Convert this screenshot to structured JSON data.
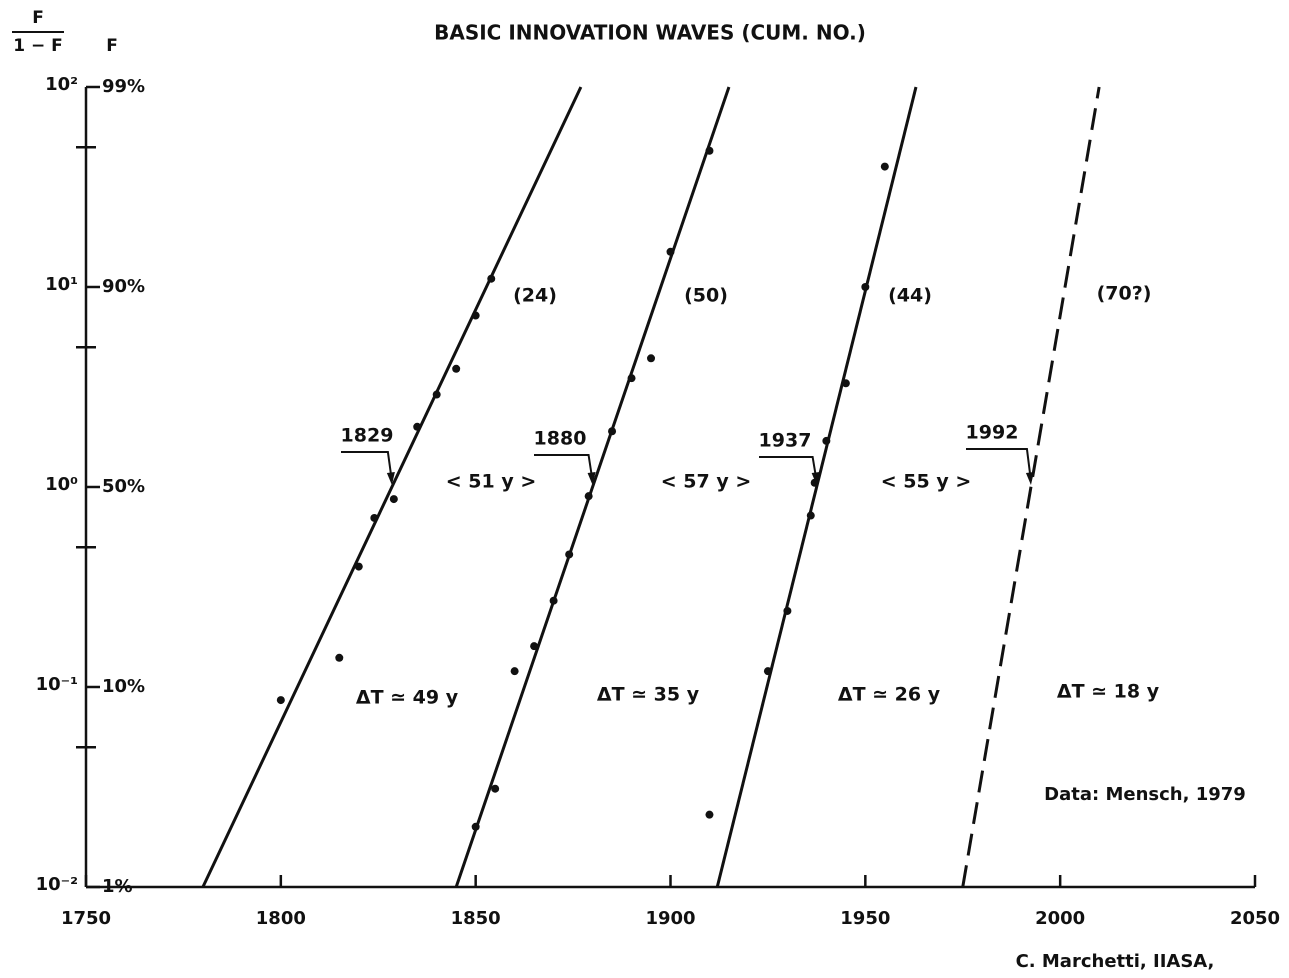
{
  "chart_data": {
    "type": "line",
    "title": "BASIC INNOVATION WAVES (CUM. NO.)",
    "y_label_numerator": "F",
    "y_label_denominator": "1 − F",
    "y_percent_axis_label": "F",
    "log_y": true,
    "xlim": [
      1750,
      2050
    ],
    "xticks": [
      1750,
      1800,
      1850,
      1900,
      1950,
      2000,
      2050
    ],
    "ylim": [
      0.01,
      100
    ],
    "yticks": [
      {
        "value": 100,
        "label": "10²"
      },
      {
        "value": 10,
        "label": "10¹"
      },
      {
        "value": 1,
        "label": "10⁰"
      },
      {
        "value": 0.1,
        "label": "10⁻¹"
      },
      {
        "value": 0.01,
        "label": "10⁻²"
      }
    ],
    "y_percent_labels": [
      "99%",
      "90%",
      "50%",
      "10%",
      "1%"
    ],
    "yminor_ticks": [
      50,
      5,
      0.5,
      0.05
    ],
    "series": [
      {
        "color": "#111111",
        "dashed": false,
        "count_label": "(24)",
        "midpoint_label": "1829",
        "delta_label": "ΔT ≃ 49 y",
        "x": [
          1780,
          1877
        ],
        "values": [
          0.01,
          100
        ],
        "points": {
          "x": [
            1800,
            1815,
            1820,
            1824,
            1829,
            1835,
            1840,
            1845,
            1850,
            1854
          ],
          "values": [
            0.086,
            0.14,
            0.4,
            0.7,
            0.87,
            2,
            2.9,
            3.9,
            7.2,
            11
          ]
        }
      },
      {
        "color": "#111111",
        "dashed": false,
        "count_label": "(50)",
        "midpoint_label": "1880",
        "delta_label": "ΔT ≃ 35 y",
        "x": [
          1845,
          1915
        ],
        "values": [
          0.01,
          100
        ],
        "points": {
          "x": [
            1850,
            1855,
            1860,
            1865,
            1870,
            1874,
            1879,
            1885,
            1890,
            1895,
            1900,
            1910
          ],
          "values": [
            0.02,
            0.031,
            0.12,
            0.16,
            0.27,
            0.46,
            0.9,
            1.9,
            3.5,
            4.4,
            15,
            48
          ]
        }
      },
      {
        "color": "#111111",
        "dashed": false,
        "count_label": "(44)",
        "midpoint_label": "1937",
        "delta_label": "ΔT ≃ 26 y",
        "x": [
          1912,
          1963
        ],
        "values": [
          0.01,
          100
        ],
        "points": {
          "x": [
            1910,
            1925,
            1930,
            1936,
            1937,
            1940,
            1945,
            1950,
            1955
          ],
          "values": [
            0.023,
            0.12,
            0.24,
            0.72,
            1.05,
            1.7,
            3.3,
            10,
            40
          ]
        }
      },
      {
        "color": "#111111",
        "dashed": true,
        "count_label": "(70?)",
        "midpoint_label": "1992",
        "delta_label": "ΔT ≃ 18 y",
        "x": [
          1975,
          2010
        ],
        "values": [
          0.01,
          100
        ]
      }
    ],
    "gap_labels": [
      "< 51 y >",
      "< 57 y >",
      "< 55 y >"
    ],
    "source": "Data: Mensch, 1979",
    "credit": "C. Marchetti, IIASA,"
  }
}
